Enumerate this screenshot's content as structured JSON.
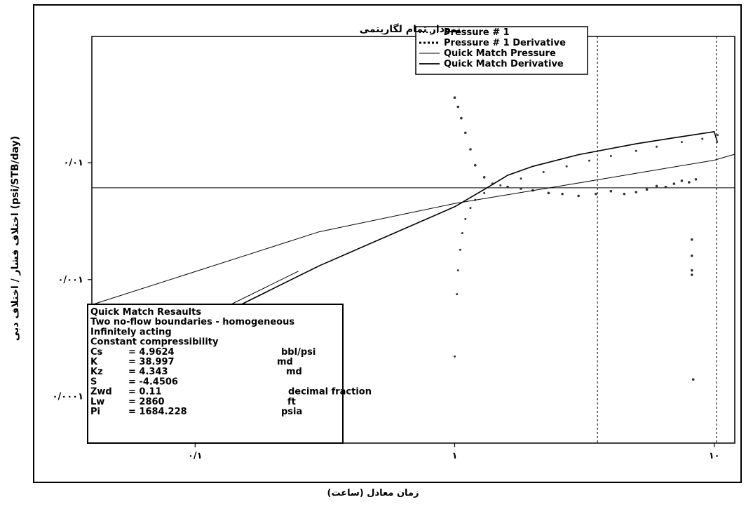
{
  "chart_data": {
    "type": "scatter",
    "title": "نمودار تمام لگاریتمی",
    "xlabel": "زمان معادل (ساعت)",
    "ylabel": "اختلاف فشار / اختلاف دبی (psi/STB/day)",
    "x_scale": "log",
    "y_scale": "log",
    "xlim": [
      0.04,
      12
    ],
    "ylim": [
      4e-05,
      0.12
    ],
    "x_ticks": [
      {
        "v": 0.1,
        "label": "۰/۱"
      },
      {
        "v": 1,
        "label": "۱"
      },
      {
        "v": 10,
        "label": "۱۰"
      }
    ],
    "y_ticks": [
      {
        "v": 0.01,
        "label": "۰/۰۱"
      },
      {
        "v": 0.001,
        "label": "۰/۰۰۱"
      },
      {
        "v": 0.0001,
        "label": "۰/۰۰۰۱"
      }
    ],
    "grid": false,
    "legend_position": "top-right",
    "legend": [
      {
        "label": "Pressure # 1",
        "style": "dotted"
      },
      {
        "label": "Pressure # 1 Derivative",
        "style": "dotted-heavy"
      },
      {
        "label": "Quick Match Pressure",
        "style": "solid-thin"
      },
      {
        "label": "Quick Match Derivative",
        "style": "solid"
      }
    ],
    "series": [
      {
        "name": "Pressure # 1",
        "points": [
          [
            1.0,
            0.00022
          ],
          [
            1.02,
            0.00075
          ],
          [
            1.03,
            0.0012
          ],
          [
            1.05,
            0.0018
          ],
          [
            1.07,
            0.0025
          ],
          [
            1.1,
            0.0033
          ],
          [
            1.15,
            0.0041
          ],
          [
            1.2,
            0.0048
          ],
          [
            1.3,
            0.0055
          ],
          [
            1.5,
            0.0064
          ],
          [
            1.8,
            0.0073
          ],
          [
            2.2,
            0.0083
          ],
          [
            2.7,
            0.0093
          ],
          [
            3.3,
            0.0104
          ],
          [
            4.0,
            0.0114
          ],
          [
            5.0,
            0.0126
          ],
          [
            6.0,
            0.0137
          ],
          [
            7.5,
            0.015
          ],
          [
            9.0,
            0.016
          ],
          [
            10.3,
            0.0172
          ]
        ]
      },
      {
        "name": "Pressure # 1 Derivative",
        "points": [
          [
            1.0,
            0.036
          ],
          [
            1.03,
            0.03
          ],
          [
            1.06,
            0.024
          ],
          [
            1.1,
            0.018
          ],
          [
            1.15,
            0.013
          ],
          [
            1.2,
            0.0095
          ],
          [
            1.3,
            0.0075
          ],
          [
            1.4,
            0.0066
          ],
          [
            1.6,
            0.0062
          ],
          [
            1.8,
            0.006
          ],
          [
            2.0,
            0.0058
          ],
          [
            2.3,
            0.0055
          ],
          [
            2.6,
            0.0054
          ],
          [
            3.0,
            0.0052
          ],
          [
            3.5,
            0.0054
          ],
          [
            4.0,
            0.0057
          ],
          [
            4.5,
            0.0054
          ],
          [
            5.0,
            0.0056
          ],
          [
            5.5,
            0.0059
          ],
          [
            6.0,
            0.0063
          ],
          [
            6.5,
            0.0062
          ],
          [
            7.0,
            0.0066
          ],
          [
            7.5,
            0.007
          ],
          [
            8.0,
            0.0068
          ],
          [
            8.5,
            0.0072
          ],
          [
            8.2,
            0.0022
          ],
          [
            8.2,
            0.0016
          ],
          [
            8.2,
            0.0012
          ],
          [
            8.2,
            0.0011
          ],
          [
            8.3,
            0.00014
          ]
        ]
      },
      {
        "name": "Quick Match Pressure",
        "points": [
          [
            0.04,
            0.00061
          ],
          [
            0.1,
            0.00117
          ],
          [
            0.3,
            0.00256
          ],
          [
            1.0,
            0.00447
          ],
          [
            3.0,
            0.0067
          ],
          [
            10.0,
            0.0105
          ],
          [
            12.0,
            0.0118
          ]
        ]
      },
      {
        "name": "Quick Match Derivative",
        "points": [
          [
            0.04,
            0.000172
          ],
          [
            0.1,
            0.000391
          ],
          [
            0.3,
            0.00131
          ],
          [
            1.0,
            0.0042
          ],
          [
            1.3,
            0.0059
          ],
          [
            1.6,
            0.0078
          ],
          [
            2.0,
            0.0093
          ],
          [
            3.0,
            0.0117
          ],
          [
            5.0,
            0.0145
          ],
          [
            7.0,
            0.0163
          ],
          [
            10.0,
            0.0184
          ],
          [
            10.3,
            0.0148
          ]
        ]
      }
    ],
    "extra_lines": [
      {
        "orientation": "horizontal",
        "y": 0.0061,
        "style": "solid-thin"
      },
      {
        "orientation": "vertical",
        "x": 3.55,
        "style": "dotted"
      },
      {
        "orientation": "vertical",
        "x": 10.2,
        "style": "dotted"
      },
      {
        "orientation": "line",
        "points": [
          [
            0.04,
            0.00016
          ],
          [
            0.25,
            0.00118
          ]
        ],
        "style": "solid-thin"
      }
    ],
    "results_box": {
      "title": "Quick Match Resaults",
      "lines": [
        "Two no-flow boundaries - homogeneous",
        "Infinitely acting",
        "Constant compressibility"
      ],
      "params": [
        {
          "name": "Cs",
          "value": "= 4.9624",
          "unit": "bbl/psi"
        },
        {
          "name": "K",
          "value": "= 38.997",
          "unit": "md"
        },
        {
          "name": "Kz",
          "value": "= 4.343",
          "unit": "md"
        },
        {
          "name": "S",
          "value": "=  -4.4506",
          "unit": ""
        },
        {
          "name": "Zwd",
          "value": "=  0.11",
          "unit": "decimal fraction"
        },
        {
          "name": "Lw",
          "value": "=  2860",
          "unit": "ft"
        },
        {
          "name": "Pi",
          "value": "=  1684.228",
          "unit": "psia"
        }
      ]
    }
  }
}
